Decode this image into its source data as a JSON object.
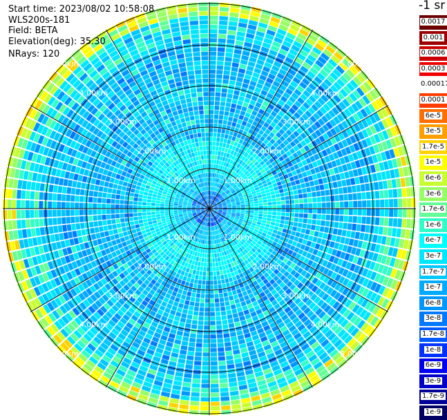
{
  "header": {
    "start_time": "Start time: 2023/08/02 10:58:08",
    "instrument": "WLS200s-181",
    "field": "Field: BETA",
    "elevation": "Elevation(deg): 35.30",
    "nrays": "NRays: 120"
  },
  "range_rings": [
    "1.00km",
    "2.00km",
    "3.00km",
    "4.00km",
    "5.00km"
  ],
  "ray_count": 120,
  "colorbar": {
    "unit_label": "-1 sr",
    "levels": [
      {
        "label": "0.0017",
        "color": "#6b0000"
      },
      {
        "label": "0.001",
        "color": "#9b0000"
      },
      {
        "label": "0.0006",
        "color": "#c80000"
      },
      {
        "label": "0.0003",
        "color": "#f00000"
      },
      {
        "label": "0.00017",
        "color": "#ffffff"
      },
      {
        "label": "0.0001",
        "color": "#ff3c00"
      },
      {
        "label": "6e-5",
        "color": "#ff6e00"
      },
      {
        "label": "3e-5",
        "color": "#ffa000"
      },
      {
        "label": "1.7e-5",
        "color": "#ffd200"
      },
      {
        "label": "1e-5",
        "color": "#ffff00"
      },
      {
        "label": "6e-6",
        "color": "#c8ff32"
      },
      {
        "label": "3e-6",
        "color": "#96ff64"
      },
      {
        "label": "1.7e-6",
        "color": "#64ff96"
      },
      {
        "label": "1e-6",
        "color": "#32ffc8"
      },
      {
        "label": "6e-7",
        "color": "#00ffff"
      },
      {
        "label": "3e-7",
        "color": "#00e6ff"
      },
      {
        "label": "1.7e-7",
        "color": "#00c8ff"
      },
      {
        "label": "1e-7",
        "color": "#00aaff"
      },
      {
        "label": "6e-8",
        "color": "#0096ff"
      },
      {
        "label": "3e-8",
        "color": "#0078ff"
      },
      {
        "label": "1.7e-8",
        "color": "#005aff"
      },
      {
        "label": "1e-8",
        "color": "#0032ff"
      },
      {
        "label": "6e-9",
        "color": "#0000f0"
      },
      {
        "label": "3e-9",
        "color": "#0000c8"
      },
      {
        "label": "1.7e-9",
        "color": "#000096"
      },
      {
        "label": "1e-9",
        "color": "#000064"
      }
    ]
  }
}
